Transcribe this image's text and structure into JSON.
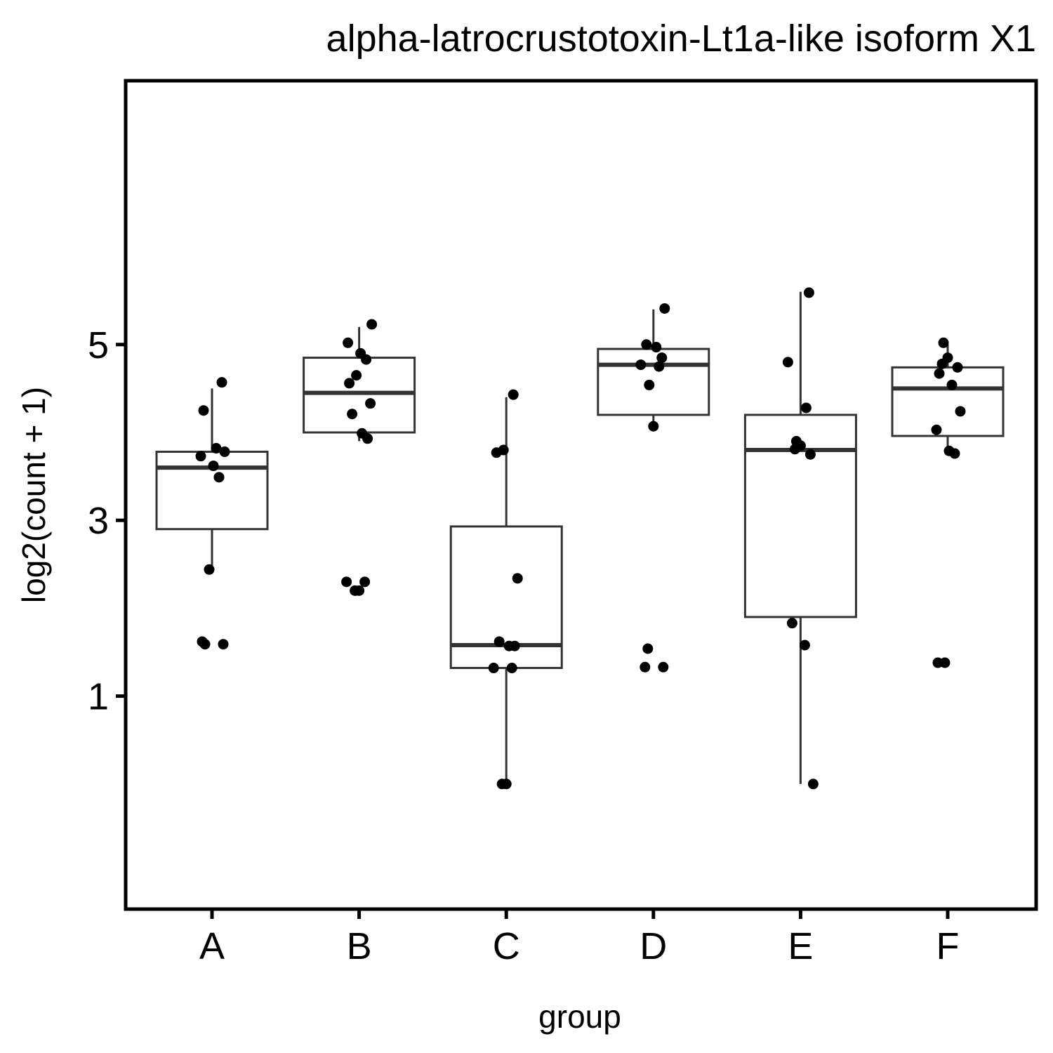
{
  "chart_data": {
    "type": "box",
    "title": "alpha-latrocrustotoxin-Lt1a-like isoform X1",
    "xlabel": "group",
    "ylabel": "log2(count + 1)",
    "categories": [
      "A",
      "B",
      "C",
      "D",
      "E",
      "F"
    ],
    "yticks": [
      1,
      3,
      5
    ],
    "ylim": [
      0,
      5.9
    ],
    "grid": false,
    "legend": "none",
    "boxes": [
      {
        "group": "A",
        "lower_whisker": 2.4,
        "q1": 2.9,
        "median": 3.6,
        "q3": 3.78,
        "upper_whisker": 4.5
      },
      {
        "group": "B",
        "lower_whisker": 3.9,
        "q1": 4.0,
        "median": 4.45,
        "q3": 4.85,
        "upper_whisker": 5.2
      },
      {
        "group": "C",
        "lower_whisker": 0.0,
        "q1": 1.32,
        "median": 1.58,
        "q3": 2.93,
        "upper_whisker": 4.4
      },
      {
        "group": "D",
        "lower_whisker": 4.12,
        "q1": 4.2,
        "median": 4.77,
        "q3": 4.95,
        "upper_whisker": 5.4
      },
      {
        "group": "E",
        "lower_whisker": 0.0,
        "q1": 1.9,
        "median": 3.8,
        "q3": 4.2,
        "upper_whisker": 5.6
      },
      {
        "group": "F",
        "lower_whisker": 3.83,
        "q1": 3.96,
        "median": 4.5,
        "q3": 4.74,
        "upper_whisker": 5.0
      }
    ],
    "points": [
      {
        "group": "A",
        "y": 4.57
      },
      {
        "group": "A",
        "y": 4.25
      },
      {
        "group": "A",
        "y": 3.82
      },
      {
        "group": "A",
        "y": 3.78
      },
      {
        "group": "A",
        "y": 3.73
      },
      {
        "group": "A",
        "y": 3.62
      },
      {
        "group": "A",
        "y": 3.49
      },
      {
        "group": "A",
        "y": 2.44
      },
      {
        "group": "A",
        "y": 1.62
      },
      {
        "group": "A",
        "y": 1.59
      },
      {
        "group": "A",
        "y": 1.59
      },
      {
        "group": "B",
        "y": 5.23
      },
      {
        "group": "B",
        "y": 5.02
      },
      {
        "group": "B",
        "y": 4.9
      },
      {
        "group": "B",
        "y": 4.83
      },
      {
        "group": "B",
        "y": 4.65
      },
      {
        "group": "B",
        "y": 4.56
      },
      {
        "group": "B",
        "y": 4.33
      },
      {
        "group": "B",
        "y": 4.21
      },
      {
        "group": "B",
        "y": 3.99
      },
      {
        "group": "B",
        "y": 3.93
      },
      {
        "group": "B",
        "y": 2.3
      },
      {
        "group": "B",
        "y": 2.3
      },
      {
        "group": "B",
        "y": 2.2
      },
      {
        "group": "B",
        "y": 2.2
      },
      {
        "group": "C",
        "y": 4.43
      },
      {
        "group": "C",
        "y": 3.8
      },
      {
        "group": "C",
        "y": 3.77
      },
      {
        "group": "C",
        "y": 2.34
      },
      {
        "group": "C",
        "y": 1.62
      },
      {
        "group": "C",
        "y": 1.57
      },
      {
        "group": "C",
        "y": 1.57
      },
      {
        "group": "C",
        "y": 1.32
      },
      {
        "group": "C",
        "y": 1.32
      },
      {
        "group": "C",
        "y": 0.0
      },
      {
        "group": "C",
        "y": 0.0
      },
      {
        "group": "D",
        "y": 5.41
      },
      {
        "group": "D",
        "y": 5.0
      },
      {
        "group": "D",
        "y": 4.97
      },
      {
        "group": "D",
        "y": 4.85
      },
      {
        "group": "D",
        "y": 4.77
      },
      {
        "group": "D",
        "y": 4.75
      },
      {
        "group": "D",
        "y": 4.54
      },
      {
        "group": "D",
        "y": 4.07
      },
      {
        "group": "D",
        "y": 1.54
      },
      {
        "group": "D",
        "y": 1.33
      },
      {
        "group": "D",
        "y": 1.33
      },
      {
        "group": "E",
        "y": 5.59
      },
      {
        "group": "E",
        "y": 4.8
      },
      {
        "group": "E",
        "y": 4.28
      },
      {
        "group": "E",
        "y": 3.9
      },
      {
        "group": "E",
        "y": 3.85
      },
      {
        "group": "E",
        "y": 3.81
      },
      {
        "group": "E",
        "y": 3.75
      },
      {
        "group": "E",
        "y": 1.83
      },
      {
        "group": "E",
        "y": 1.58
      },
      {
        "group": "E",
        "y": 0.0
      },
      {
        "group": "F",
        "y": 5.02
      },
      {
        "group": "F",
        "y": 4.85
      },
      {
        "group": "F",
        "y": 4.78
      },
      {
        "group": "F",
        "y": 4.74
      },
      {
        "group": "F",
        "y": 4.67
      },
      {
        "group": "F",
        "y": 4.54
      },
      {
        "group": "F",
        "y": 4.24
      },
      {
        "group": "F",
        "y": 4.03
      },
      {
        "group": "F",
        "y": 3.79
      },
      {
        "group": "F",
        "y": 3.76
      },
      {
        "group": "F",
        "y": 1.38
      },
      {
        "group": "F",
        "y": 1.38
      }
    ]
  }
}
